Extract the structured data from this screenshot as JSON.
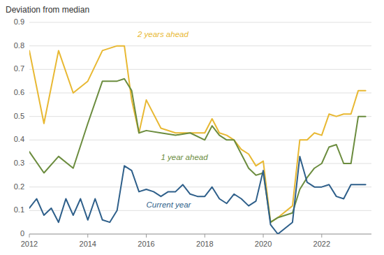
{
  "chart_data": {
    "type": "line",
    "ylabel": "Deviation from median",
    "ylim": [
      0,
      0.9
    ],
    "yticks": [
      0,
      0.1,
      0.2,
      0.3,
      0.4,
      0.5,
      0.6,
      0.7,
      0.8,
      0.9
    ],
    "xlim": [
      2012,
      2023.7
    ],
    "xticks": [
      2012,
      2014,
      2016,
      2018,
      2020,
      2022
    ],
    "grid": true,
    "series": [
      {
        "name": "2 years ahead",
        "color": "#e8b832",
        "x": [
          2012.0,
          2012.5,
          2013.0,
          2013.5,
          2014.0,
          2014.5,
          2015.0,
          2015.25,
          2015.5,
          2015.75,
          2016.0,
          2016.5,
          2017.0,
          2017.5,
          2018.0,
          2018.25,
          2018.5,
          2018.75,
          2019.0,
          2019.25,
          2019.5,
          2019.75,
          2020.0,
          2020.25,
          2020.5,
          2021.0,
          2021.25,
          2021.5,
          2021.75,
          2022.0,
          2022.25,
          2022.5,
          2022.75,
          2023.0,
          2023.25,
          2023.5
        ],
        "values": [
          0.78,
          0.47,
          0.78,
          0.6,
          0.65,
          0.78,
          0.8,
          0.8,
          0.57,
          0.43,
          0.57,
          0.45,
          0.43,
          0.43,
          0.43,
          0.49,
          0.43,
          0.42,
          0.4,
          0.36,
          0.34,
          0.29,
          0.31,
          0.05,
          0.07,
          0.12,
          0.4,
          0.4,
          0.43,
          0.42,
          0.51,
          0.5,
          0.51,
          0.51,
          0.61,
          0.61
        ]
      },
      {
        "name": "1 year ahead",
        "color": "#6b8c3e",
        "x": [
          2012.0,
          2012.5,
          2013.0,
          2013.5,
          2014.0,
          2014.5,
          2015.0,
          2015.25,
          2015.5,
          2015.75,
          2016.0,
          2016.5,
          2017.0,
          2017.5,
          2018.0,
          2018.25,
          2018.5,
          2018.75,
          2019.0,
          2019.25,
          2019.5,
          2019.75,
          2020.0,
          2020.25,
          2020.5,
          2021.0,
          2021.25,
          2021.5,
          2021.75,
          2022.0,
          2022.25,
          2022.5,
          2022.75,
          2023.0,
          2023.25,
          2023.5
        ],
        "values": [
          0.35,
          0.26,
          0.33,
          0.28,
          0.47,
          0.65,
          0.65,
          0.66,
          0.61,
          0.43,
          0.44,
          0.43,
          0.42,
          0.43,
          0.4,
          0.46,
          0.42,
          0.4,
          0.4,
          0.34,
          0.28,
          0.25,
          0.26,
          0.05,
          0.07,
          0.09,
          0.19,
          0.24,
          0.28,
          0.3,
          0.37,
          0.38,
          0.3,
          0.3,
          0.5,
          0.5
        ]
      },
      {
        "name": "Current year",
        "color": "#2e5f8a",
        "x": [
          2012.0,
          2012.25,
          2012.5,
          2012.75,
          2013.0,
          2013.25,
          2013.5,
          2013.75,
          2014.0,
          2014.25,
          2014.5,
          2014.75,
          2015.0,
          2015.25,
          2015.5,
          2015.75,
          2016.0,
          2016.25,
          2016.5,
          2016.75,
          2017.0,
          2017.25,
          2017.5,
          2017.75,
          2018.0,
          2018.25,
          2018.5,
          2018.75,
          2019.0,
          2019.25,
          2019.5,
          2019.75,
          2020.0,
          2020.25,
          2020.5,
          2021.0,
          2021.25,
          2021.5,
          2021.75,
          2022.0,
          2022.25,
          2022.5,
          2022.75,
          2023.0,
          2023.25,
          2023.5
        ],
        "values": [
          0.11,
          0.15,
          0.08,
          0.11,
          0.05,
          0.15,
          0.08,
          0.15,
          0.06,
          0.15,
          0.06,
          0.05,
          0.1,
          0.29,
          0.27,
          0.18,
          0.19,
          0.18,
          0.16,
          0.18,
          0.18,
          0.21,
          0.17,
          0.16,
          0.16,
          0.2,
          0.15,
          0.13,
          0.17,
          0.15,
          0.12,
          0.14,
          0.27,
          0.04,
          0.0,
          0.05,
          0.33,
          0.22,
          0.2,
          0.2,
          0.21,
          0.16,
          0.15,
          0.21,
          0.21,
          0.21
        ]
      }
    ],
    "annotations": [
      {
        "text": "2 years ahead",
        "x": 2015.7,
        "y": 0.83,
        "color": "#e8b832"
      },
      {
        "text": "1 year ahead",
        "x": 2016.5,
        "y": 0.305,
        "color": "#6b8c3e"
      },
      {
        "text": "Current year",
        "x": 2016.0,
        "y": 0.105,
        "color": "#2e5f8a"
      }
    ]
  }
}
